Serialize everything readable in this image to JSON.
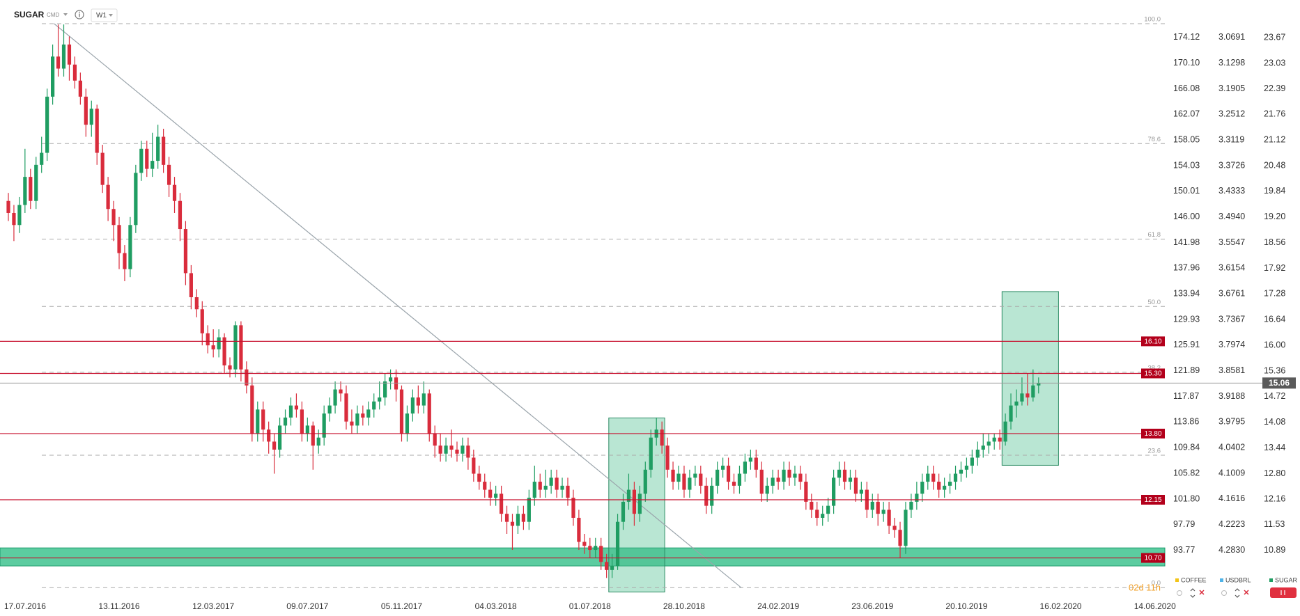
{
  "chart_data": {
    "type": "candlestick",
    "title": "SUGAR",
    "market": "CMD",
    "interval": "W1",
    "countdown": "02d 11h",
    "up_color": "#1f9d62",
    "down_color": "#d92c3c",
    "xlim": [
      -4.51,
      206.8
    ],
    "xticks": [
      {
        "value": 0,
        "label": "17.07.2016"
      },
      {
        "value": 17,
        "label": "13.11.2016"
      },
      {
        "value": 34,
        "label": "12.03.2017"
      },
      {
        "value": 51,
        "label": "09.07.2017"
      },
      {
        "value": 68,
        "label": "05.11.2017"
      },
      {
        "value": 85,
        "label": "04.03.2018"
      },
      {
        "value": 102,
        "label": "01.07.2018"
      },
      {
        "value": 119,
        "label": "28.10.2018"
      },
      {
        "value": 136,
        "label": "24.02.2019"
      },
      {
        "value": 153,
        "label": "23.06.2019"
      },
      {
        "value": 170,
        "label": "20.10.2019"
      },
      {
        "value": 187,
        "label": "16.02.2020"
      },
      {
        "value": 204,
        "label": "14.06.2020"
      }
    ],
    "ylim": [
      9.79,
      24.61
    ],
    "yticks": [
      23.67,
      23.03,
      22.39,
      21.76,
      21.12,
      20.48,
      19.84,
      {
        "value": 19.2,
        "label": "19.20"
      },
      18.56,
      17.92,
      17.28,
      16.64,
      {
        "value": 16,
        "label": "16.00"
      },
      15.36,
      14.72,
      14.08,
      13.44,
      {
        "value": 12.8,
        "label": "12.80"
      },
      12.16,
      11.53,
      10.89
    ],
    "coffee_axis": {
      "lim": [
        86.86,
        179.99
      ],
      "ticks": [
        174.12,
        {
          "value": 170.1,
          "label": "170.10"
        },
        166.08,
        162.07,
        158.05,
        154.03,
        150.01,
        {
          "value": 146,
          "label": "146.00"
        },
        141.98,
        137.96,
        133.94,
        129.93,
        125.91,
        121.89,
        117.87,
        113.86,
        109.84,
        105.82,
        {
          "value": 101.8,
          "label": "101.80"
        },
        97.79,
        93.77
      ]
    },
    "usdbrl_axis": {
      "lim": [
        4.3874,
        2.9804
      ],
      "ticks": [
        3.0691,
        3.1298,
        3.1905,
        3.2512,
        3.3119,
        3.3726,
        3.4333,
        {
          "value": 3.494,
          "label": "3.4940"
        },
        3.5547,
        3.6154,
        3.6761,
        3.7367,
        3.7974,
        3.8581,
        3.9188,
        3.9795,
        4.0402,
        4.1009,
        4.1616,
        4.2223,
        {
          "value": 4.283,
          "label": "4.2830"
        }
      ]
    },
    "series": [
      {
        "name": "SUGAR",
        "x": [
          -3,
          -2,
          -1,
          0,
          1,
          2,
          3,
          4,
          5,
          6,
          7,
          8,
          9,
          10,
          11,
          12,
          13,
          14,
          15,
          16,
          17,
          18,
          19,
          20,
          21,
          22,
          23,
          24,
          25,
          26,
          27,
          28,
          29,
          30,
          31,
          32,
          33,
          34,
          35,
          36,
          37,
          38,
          39,
          40,
          41,
          42,
          43,
          44,
          45,
          46,
          47,
          48,
          49,
          50,
          51,
          52,
          53,
          54,
          55,
          56,
          57,
          58,
          59,
          60,
          61,
          62,
          63,
          64,
          65,
          66,
          67,
          68,
          69,
          70,
          71,
          72,
          73,
          74,
          75,
          76,
          77,
          78,
          79,
          80,
          81,
          82,
          83,
          84,
          85,
          86,
          87,
          88,
          89,
          90,
          91,
          92,
          93,
          94,
          95,
          96,
          97,
          98,
          99,
          100,
          101,
          102,
          103,
          104,
          105,
          106,
          107,
          108,
          109,
          110,
          111,
          112,
          113,
          114,
          115,
          116,
          117,
          118,
          119,
          120,
          121,
          122,
          123,
          124,
          125,
          126,
          127,
          128,
          129,
          130,
          131,
          132,
          133,
          134,
          135,
          136,
          137,
          138,
          139,
          140,
          141,
          142,
          143,
          144,
          145,
          146,
          147,
          148,
          149,
          150,
          151,
          152,
          153,
          154,
          155,
          156,
          157,
          158,
          159,
          160,
          161,
          162,
          163,
          164,
          165,
          166,
          167,
          168,
          169,
          170,
          171,
          172,
          173,
          174,
          175,
          176,
          177,
          178,
          179,
          180,
          181,
          182,
          183
        ],
        "open": [
          19.6,
          19.3,
          19.0,
          19.5,
          20.2,
          19.6,
          20.5,
          20.8,
          22.2,
          23.2,
          22.9,
          23.5,
          23.0,
          22.6,
          22.2,
          21.5,
          21.9,
          20.8,
          20.0,
          19.4,
          19.0,
          18.3,
          17.9,
          19.0,
          20.3,
          20.9,
          20.4,
          20.6,
          21.2,
          20.5,
          20.0,
          19.6,
          18.9,
          17.8,
          17.2,
          16.9,
          16.3,
          16.0,
          15.9,
          16.2,
          15.5,
          15.4,
          16.5,
          15.4,
          15.0,
          13.8,
          14.4,
          13.9,
          13.6,
          13.4,
          14.0,
          14.2,
          14.5,
          14.4,
          13.8,
          14.0,
          13.5,
          13.7,
          14.3,
          14.5,
          14.9,
          14.8,
          14.1,
          14.0,
          14.3,
          14.2,
          14.4,
          14.6,
          14.7,
          15.1,
          15.2,
          14.9,
          13.8,
          14.3,
          14.7,
          14.5,
          14.8,
          13.8,
          13.5,
          13.3,
          13.5,
          13.4,
          13.3,
          13.5,
          13.2,
          12.8,
          12.6,
          12.4,
          12.2,
          12.3,
          11.8,
          11.6,
          11.5,
          11.8,
          11.6,
          12.2,
          12.6,
          12.4,
          12.5,
          12.7,
          12.4,
          12.5,
          12.2,
          11.7,
          11.1,
          11.0,
          10.9,
          11.0,
          10.6,
          10.4,
          10.5,
          11.6,
          12.1,
          12.4,
          11.8,
          12.3,
          12.9,
          13.7,
          13.9,
          13.5,
          12.9,
          12.6,
          12.8,
          12.4,
          12.7,
          12.8,
          12.5,
          12.0,
          12.5,
          12.9,
          13.0,
          12.6,
          12.5,
          12.8,
          13.1,
          13.2,
          12.9,
          12.3,
          12.5,
          12.7,
          12.6,
          12.9,
          12.7,
          12.8,
          12.6,
          12.1,
          11.9,
          11.7,
          11.8,
          12.0,
          12.7,
          12.9,
          12.6,
          12.7,
          12.3,
          12.4,
          11.9,
          12.1,
          11.8,
          11.9,
          11.5,
          11.4,
          11.0,
          11.9,
          12.1,
          12.3,
          12.6,
          12.8,
          12.6,
          12.4,
          12.5,
          12.6,
          12.8,
          12.9,
          13.0,
          13.2,
          13.4,
          13.5,
          13.6,
          13.7,
          13.6,
          14.1,
          14.5,
          14.6,
          14.8,
          14.7,
          15.0
        ],
        "high": [
          19.8,
          19.5,
          19.7,
          20.9,
          20.4,
          20.7,
          21.2,
          22.4,
          23.5,
          24.0,
          24.0,
          23.7,
          23.2,
          22.8,
          22.4,
          22.1,
          22.0,
          21.0,
          20.2,
          19.6,
          19.2,
          18.5,
          19.2,
          20.5,
          21.1,
          21.1,
          21.3,
          21.5,
          21.4,
          20.7,
          20.2,
          19.8,
          19.1,
          18.0,
          17.4,
          17.1,
          16.5,
          16.4,
          16.4,
          16.3,
          15.7,
          16.6,
          16.6,
          15.6,
          15.2,
          14.6,
          14.6,
          14.1,
          13.8,
          14.2,
          14.4,
          14.7,
          14.8,
          14.6,
          14.2,
          14.1,
          13.9,
          14.5,
          14.7,
          15.1,
          15.1,
          15.0,
          14.4,
          14.5,
          14.5,
          14.6,
          14.8,
          15.1,
          15.3,
          15.4,
          15.4,
          15.0,
          14.5,
          14.9,
          15.0,
          15.1,
          14.9,
          14.0,
          13.8,
          13.7,
          13.9,
          13.6,
          13.7,
          13.7,
          13.4,
          13.0,
          12.8,
          12.6,
          12.5,
          12.5,
          12.0,
          11.8,
          12.0,
          12.0,
          12.4,
          13.0,
          12.8,
          12.9,
          12.9,
          12.9,
          12.7,
          12.7,
          12.4,
          11.9,
          11.3,
          11.2,
          11.2,
          11.2,
          10.8,
          10.8,
          11.8,
          12.3,
          12.8,
          12.6,
          12.5,
          13.1,
          13.9,
          14.2,
          14.1,
          13.7,
          13.1,
          13.0,
          13.0,
          12.9,
          13.0,
          13.0,
          12.7,
          12.7,
          13.1,
          13.2,
          13.2,
          12.8,
          13.0,
          13.3,
          13.4,
          13.4,
          13.1,
          12.7,
          12.9,
          12.9,
          13.1,
          13.1,
          13.0,
          13.0,
          12.8,
          12.3,
          12.1,
          12.0,
          12.2,
          12.9,
          13.1,
          13.1,
          12.9,
          12.9,
          12.6,
          12.6,
          12.3,
          12.3,
          12.1,
          12.1,
          11.7,
          11.6,
          12.1,
          12.3,
          12.6,
          12.8,
          13.0,
          13.0,
          12.8,
          12.7,
          12.8,
          13.0,
          13.1,
          13.2,
          13.4,
          13.6,
          13.8,
          13.8,
          13.8,
          13.9,
          14.3,
          14.8,
          14.9,
          15.2,
          15.3,
          15.4,
          15.2
        ],
        "low": [
          19.1,
          18.6,
          18.8,
          19.3,
          19.4,
          19.4,
          20.3,
          20.6,
          22.0,
          22.7,
          22.7,
          22.6,
          22.4,
          22.0,
          21.2,
          21.2,
          20.5,
          19.8,
          19.1,
          18.6,
          17.9,
          17.6,
          17.7,
          18.8,
          20.1,
          20.2,
          20.2,
          20.4,
          20.3,
          19.7,
          19.3,
          18.6,
          17.5,
          16.9,
          16.7,
          16.0,
          15.8,
          15.7,
          15.7,
          15.3,
          15.2,
          15.2,
          15.1,
          14.8,
          13.6,
          13.6,
          13.6,
          13.3,
          12.8,
          13.2,
          13.8,
          14.0,
          14.2,
          13.6,
          13.6,
          12.9,
          13.3,
          13.5,
          14.1,
          14.3,
          14.6,
          13.9,
          13.8,
          13.8,
          14.0,
          14.0,
          14.2,
          14.4,
          14.5,
          14.9,
          14.6,
          13.6,
          13.6,
          14.1,
          14.3,
          14.3,
          13.6,
          13.2,
          13.1,
          13.1,
          13.2,
          13.1,
          13.1,
          12.9,
          12.6,
          12.4,
          12.2,
          12.0,
          12.0,
          11.6,
          11.3,
          10.9,
          11.3,
          11.4,
          11.4,
          12.0,
          12.2,
          12.2,
          12.3,
          12.2,
          12.2,
          12.0,
          11.5,
          10.9,
          10.8,
          10.7,
          10.7,
          10.4,
          10.2,
          10.2,
          10.4,
          11.4,
          11.9,
          11.5,
          11.6,
          12.1,
          12.7,
          13.5,
          13.3,
          12.7,
          12.4,
          12.4,
          12.2,
          12.2,
          12.5,
          12.3,
          11.8,
          11.8,
          12.3,
          12.7,
          12.4,
          12.3,
          12.3,
          12.6,
          12.9,
          12.7,
          12.1,
          12.1,
          12.3,
          12.4,
          12.4,
          12.5,
          12.5,
          12.4,
          11.9,
          11.7,
          11.5,
          11.5,
          11.6,
          11.8,
          12.5,
          12.4,
          12.4,
          12.1,
          12.1,
          11.7,
          11.7,
          11.5,
          11.6,
          11.3,
          11.2,
          10.7,
          10.8,
          11.7,
          11.9,
          12.1,
          12.4,
          12.4,
          12.2,
          12.2,
          12.3,
          12.4,
          12.6,
          12.7,
          12.8,
          13.0,
          13.2,
          13.3,
          13.4,
          13.4,
          13.5,
          13.9,
          14.2,
          14.5,
          14.5,
          14.6,
          14.8
        ],
        "close": [
          19.3,
          19.0,
          19.5,
          20.2,
          19.6,
          20.5,
          20.8,
          22.2,
          23.2,
          22.9,
          23.5,
          23.0,
          22.6,
          22.2,
          21.5,
          21.9,
          20.8,
          20.0,
          19.4,
          19.0,
          18.3,
          17.9,
          19.0,
          20.3,
          20.9,
          20.4,
          20.6,
          21.2,
          20.5,
          20.0,
          19.6,
          18.9,
          17.8,
          17.2,
          16.9,
          16.3,
          16.0,
          15.9,
          16.2,
          15.5,
          15.4,
          16.5,
          15.4,
          15.0,
          13.8,
          14.4,
          13.9,
          13.6,
          13.4,
          14.0,
          14.2,
          14.5,
          14.4,
          13.8,
          14.0,
          13.5,
          13.7,
          14.3,
          14.5,
          14.9,
          14.8,
          14.1,
          14.0,
          14.3,
          14.2,
          14.4,
          14.6,
          14.7,
          15.1,
          15.2,
          14.9,
          13.8,
          14.3,
          14.7,
          14.5,
          14.8,
          13.8,
          13.5,
          13.3,
          13.5,
          13.4,
          13.3,
          13.5,
          13.2,
          12.8,
          12.6,
          12.4,
          12.2,
          12.3,
          11.8,
          11.6,
          11.5,
          11.8,
          11.6,
          12.2,
          12.6,
          12.4,
          12.5,
          12.7,
          12.4,
          12.5,
          12.2,
          11.7,
          11.1,
          11.0,
          10.9,
          11.0,
          10.6,
          10.4,
          10.5,
          11.6,
          12.1,
          12.4,
          11.8,
          12.3,
          12.9,
          13.7,
          13.9,
          13.5,
          12.9,
          12.6,
          12.8,
          12.4,
          12.7,
          12.8,
          12.5,
          12.0,
          12.5,
          12.9,
          13.0,
          12.6,
          12.5,
          12.8,
          13.1,
          13.2,
          12.9,
          12.3,
          12.5,
          12.7,
          12.6,
          12.9,
          12.7,
          12.8,
          12.6,
          12.1,
          11.9,
          11.7,
          11.8,
          12.0,
          12.7,
          12.9,
          12.6,
          12.7,
          12.3,
          12.4,
          11.9,
          12.1,
          11.8,
          11.9,
          11.5,
          11.4,
          11.0,
          11.9,
          12.1,
          12.3,
          12.6,
          12.8,
          12.6,
          12.4,
          12.5,
          12.6,
          12.8,
          12.9,
          13.0,
          13.2,
          13.4,
          13.5,
          13.6,
          13.7,
          13.6,
          14.1,
          14.5,
          14.6,
          14.8,
          14.7,
          15.0,
          15.06
        ]
      }
    ],
    "last": 15.06,
    "levels": {
      "color": "#c8102e",
      "values": [
        16.1,
        15.3,
        13.8,
        12.15,
        10.7
      ],
      "value_labels": [
        "16.10",
        "15.30",
        "13.80",
        "12.15",
        "10.70"
      ]
    },
    "fib": {
      "values": [
        24.02,
        21.03,
        18.65,
        16.97,
        15.33,
        13.26,
        9.96
      ],
      "labels": [
        "100.0",
        "78.6",
        "61.8",
        "50.0",
        "38.2",
        "23.6",
        "0.0"
      ]
    },
    "trendline": {
      "x": [
        5.26,
        129.3
      ],
      "y": [
        24.02,
        9.96
      ]
    },
    "zone": {
      "ylim": [
        10.5,
        10.95
      ]
    },
    "boxes": [
      {
        "x": [
          105.4,
          115.5
        ],
        "y": [
          9.85,
          14.19
        ]
      },
      {
        "x": [
          176.4,
          186.6
        ],
        "y": [
          13.01,
          17.34
        ]
      }
    ],
    "legend": [
      {
        "name": "COFFEE",
        "color": "#f2c418"
      },
      {
        "name": "USDBRL",
        "color": "#4fb3e8"
      },
      {
        "name": "SUGAR",
        "color": "#1f9d62"
      }
    ]
  }
}
